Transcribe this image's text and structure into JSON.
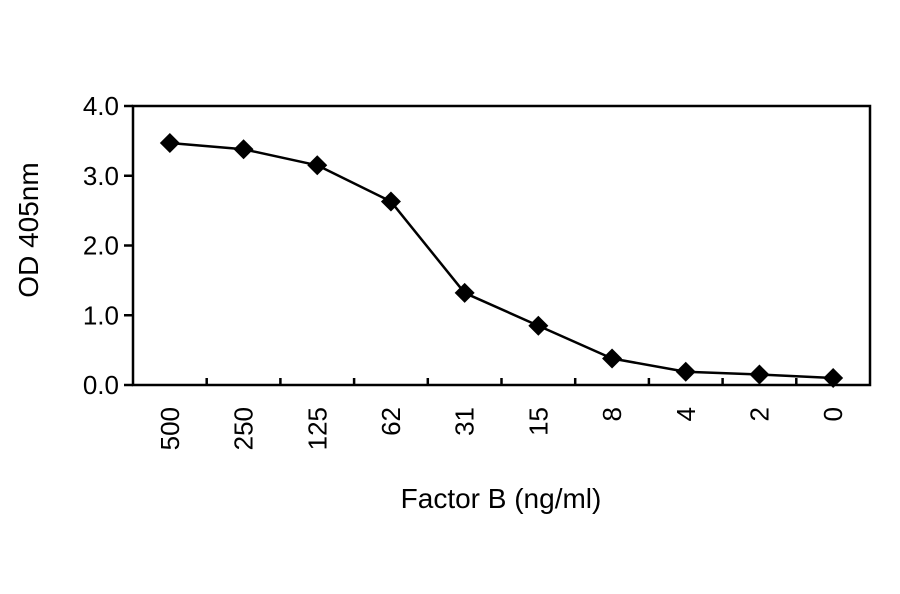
{
  "chart_data": {
    "type": "line",
    "title": "",
    "xlabel": "Factor B (ng/ml)",
    "ylabel": "OD 405nm",
    "categories": [
      "500",
      "250",
      "125",
      "62",
      "31",
      "15",
      "8",
      "4",
      "2",
      "0"
    ],
    "series": [
      {
        "values": [
          3.47,
          3.38,
          3.15,
          2.63,
          1.32,
          0.85,
          0.38,
          0.19,
          0.15,
          0.1
        ]
      }
    ],
    "ylim": [
      0,
      4
    ],
    "yticks": [
      "0.0",
      "1.0",
      "2.0",
      "3.0",
      "4.0"
    ],
    "grid": false,
    "marker": "diamond",
    "colors": {
      "line": "#000000",
      "marker": "#000000",
      "axis": "#000000"
    }
  }
}
